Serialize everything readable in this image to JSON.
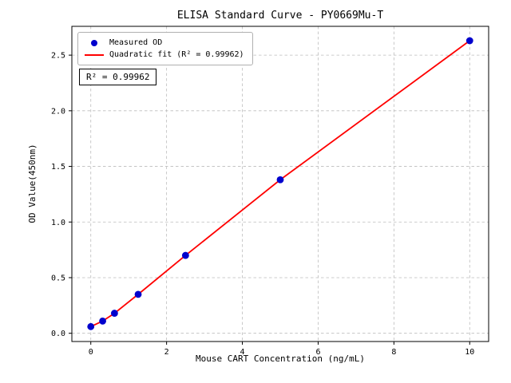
{
  "chart_data": {
    "type": "scatter",
    "title": "ELISA Standard Curve - PY0669Mu-T",
    "xlabel": "Mouse CART Concentration (ng/mL)",
    "ylabel": "OD Value(450nm)",
    "x": [
      0,
      0.313,
      0.625,
      1.25,
      2.5,
      5,
      10
    ],
    "y": [
      0.06,
      0.11,
      0.18,
      0.35,
      0.7,
      1.38,
      2.63
    ],
    "series": [
      {
        "name": "Measured OD",
        "kind": "scatter",
        "color": "#0000cd"
      },
      {
        "name": "Quadratic fit (R² = 0.99962)",
        "kind": "line",
        "color": "#ff0000"
      }
    ],
    "annotation": "R² = 0.99962",
    "xticks": [
      0,
      2,
      4,
      6,
      8,
      10
    ],
    "xtick_labels": [
      "0",
      "2",
      "4",
      "6",
      "8",
      "10"
    ],
    "yticks": [
      0.0,
      0.5,
      1.0,
      1.5,
      2.0,
      2.5
    ],
    "ytick_labels": [
      "0.0",
      "0.5",
      "1.0",
      "1.5",
      "2.0",
      "2.5"
    ],
    "xlim": [
      -0.5,
      10.5
    ],
    "ylim": [
      -0.074,
      2.759
    ],
    "grid": true,
    "grid_color": "#bdbdbd",
    "axis_color": "#000000",
    "legend_position": "upper-left"
  }
}
